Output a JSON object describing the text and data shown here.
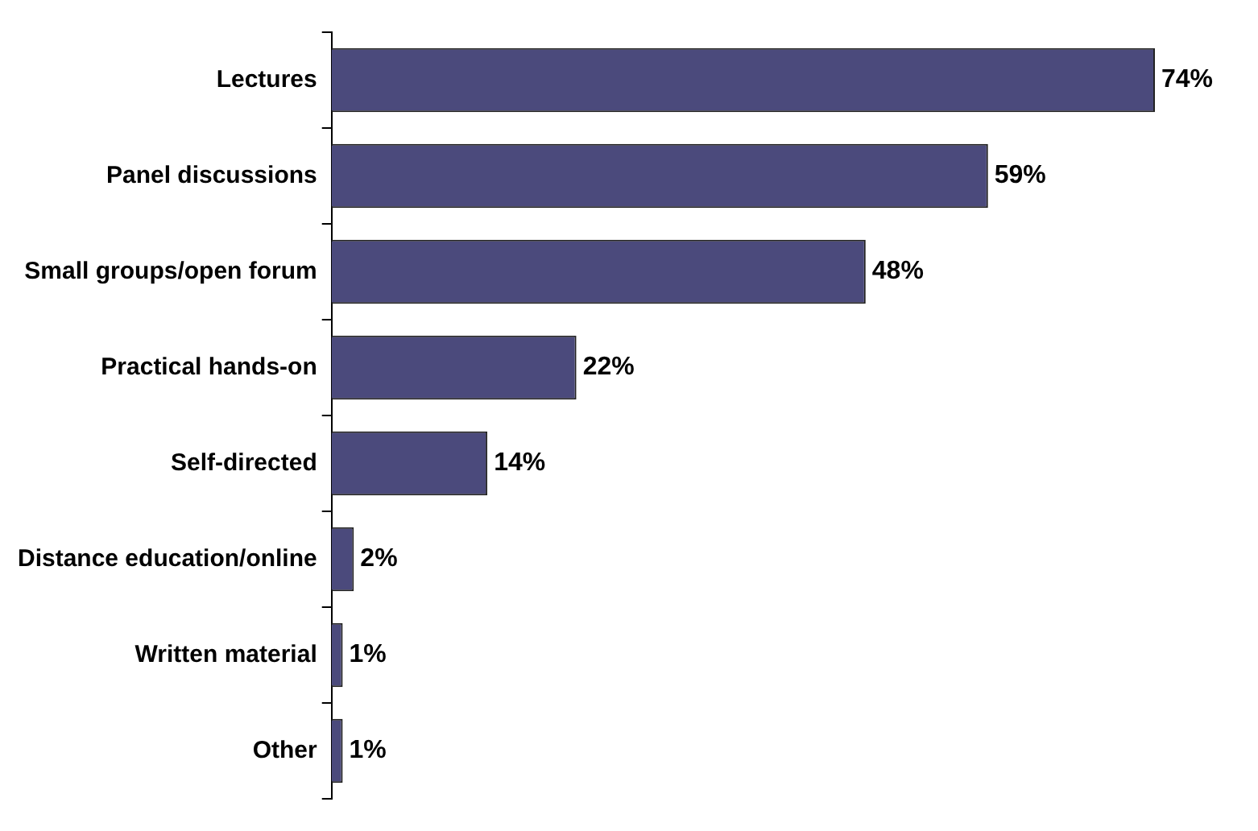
{
  "chart_data": {
    "type": "bar",
    "orientation": "horizontal",
    "categories": [
      "Lectures",
      "Panel discussions",
      "Small groups/open forum",
      "Practical hands-on",
      "Self-directed",
      "Distance education/online",
      "Written material",
      "Other"
    ],
    "values": [
      74,
      59,
      48,
      22,
      14,
      2,
      1,
      1
    ],
    "value_labels": [
      "74%",
      "59%",
      "48%",
      "22%",
      "14%",
      "2%",
      "1%",
      "1%"
    ],
    "color": "#4b4a7c",
    "grid": false,
    "legend": false
  }
}
